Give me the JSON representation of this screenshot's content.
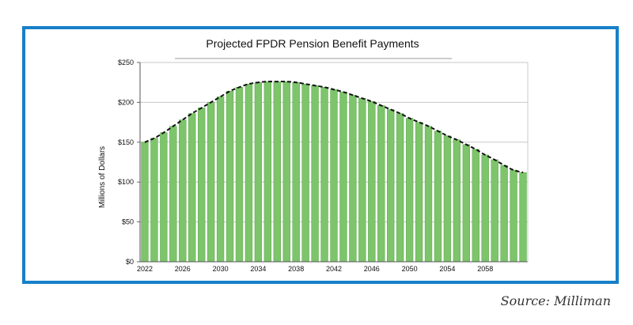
{
  "source": "Source: Milliman",
  "colors": {
    "frame": "#1780c8",
    "bar": "#7dc46b",
    "bar_edge": "#5aa84a",
    "grid": "#c8c8c8",
    "trend": "#111111"
  },
  "chart_data": {
    "type": "bar",
    "title": "Projected FPDR Pension Benefit Payments",
    "xlabel": "",
    "ylabel": "Millions of Dollars",
    "ylim": [
      0,
      250
    ],
    "yticks": [
      0,
      50,
      100,
      150,
      200,
      250
    ],
    "ytick_labels": [
      "$0",
      "$50",
      "$100",
      "$150",
      "$200",
      "$250"
    ],
    "xtick_labels": [
      "2022",
      "2026",
      "2030",
      "2034",
      "2038",
      "2042",
      "2046",
      "2050",
      "2054",
      "2058"
    ],
    "grid": true,
    "trend_line": "dashed",
    "categories": [
      2022,
      2023,
      2024,
      2025,
      2026,
      2027,
      2028,
      2029,
      2030,
      2031,
      2032,
      2033,
      2034,
      2035,
      2036,
      2037,
      2038,
      2039,
      2040,
      2041,
      2042,
      2043,
      2044,
      2045,
      2046,
      2047,
      2048,
      2049,
      2050,
      2051,
      2052,
      2053,
      2054,
      2055,
      2056,
      2057,
      2058,
      2059,
      2060,
      2061,
      2062
    ],
    "values": [
      150,
      155,
      162,
      170,
      178,
      186,
      193,
      200,
      207,
      214,
      219,
      223,
      225,
      226,
      226,
      226,
      225,
      223,
      221,
      219,
      216,
      213,
      209,
      205,
      201,
      196,
      191,
      186,
      180,
      175,
      170,
      164,
      158,
      153,
      147,
      141,
      134,
      128,
      121,
      115,
      112
    ]
  }
}
